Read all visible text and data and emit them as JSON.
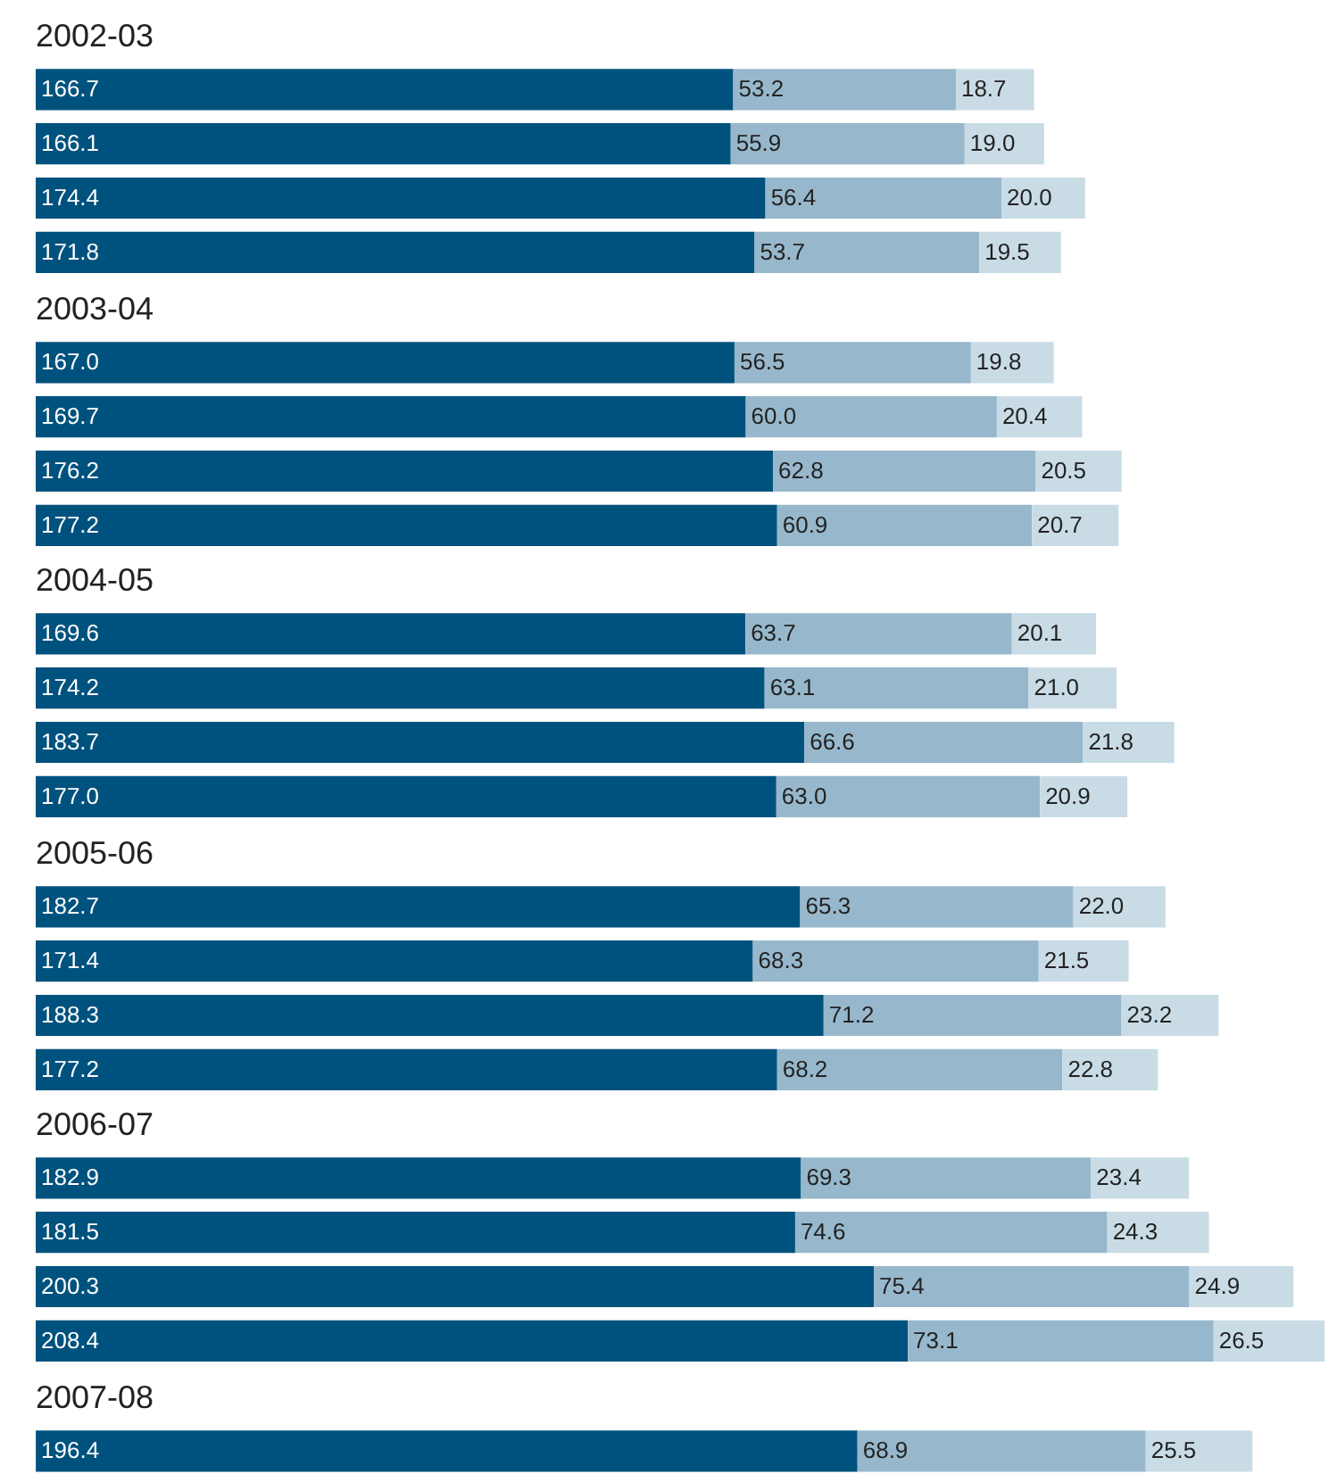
{
  "chart_data": [
    {
      "type": "bar",
      "title": "2002-03",
      "orientation": "horizontal",
      "stacked": true,
      "tick_labels": false,
      "categories": [
        null,
        null,
        null,
        null
      ],
      "series": [
        {
          "color": "#00527e",
          "values": [
            166.7,
            166.1,
            174.4,
            171.8
          ],
          "value_labels": [
            "166.7",
            "166.1",
            "174.4",
            "171.8"
          ]
        },
        {
          "color": "#97b8cc",
          "values": [
            53.2,
            55.9,
            56.4,
            53.7
          ],
          "value_labels": [
            "53.2",
            "55.9",
            "56.4",
            "53.7"
          ]
        },
        {
          "color": "#c9dce6",
          "values": [
            18.7,
            19.0,
            20.0,
            19.5
          ],
          "value_labels": [
            "18.7",
            "19.0",
            "20.0",
            "19.5"
          ]
        }
      ]
    },
    {
      "type": "bar",
      "title": "2003-04",
      "orientation": "horizontal",
      "stacked": true,
      "tick_labels": false,
      "categories": [
        null,
        null,
        null,
        null
      ],
      "series": [
        {
          "color": "#00527e",
          "values": [
            167.0,
            169.7,
            176.2,
            177.2
          ],
          "value_labels": [
            "167.0",
            "169.7",
            "176.2",
            "177.2"
          ]
        },
        {
          "color": "#97b8cc",
          "values": [
            56.5,
            60.0,
            62.8,
            60.9
          ],
          "value_labels": [
            "56.5",
            "60.0",
            "62.8",
            "60.9"
          ]
        },
        {
          "color": "#c9dce6",
          "values": [
            19.8,
            20.4,
            20.5,
            20.7
          ],
          "value_labels": [
            "19.8",
            "20.4",
            "20.5",
            "20.7"
          ]
        }
      ]
    },
    {
      "type": "bar",
      "title": "2004-05",
      "orientation": "horizontal",
      "stacked": true,
      "tick_labels": false,
      "categories": [
        null,
        null,
        null,
        null
      ],
      "series": [
        {
          "color": "#00527e",
          "values": [
            169.6,
            174.2,
            183.7,
            177.0
          ],
          "value_labels": [
            "169.6",
            "174.2",
            "183.7",
            "177.0"
          ]
        },
        {
          "color": "#97b8cc",
          "values": [
            63.7,
            63.1,
            66.6,
            63.0
          ],
          "value_labels": [
            "63.7",
            "63.1",
            "66.6",
            "63.0"
          ]
        },
        {
          "color": "#c9dce6",
          "values": [
            20.1,
            21.0,
            21.8,
            20.9
          ],
          "value_labels": [
            "20.1",
            "21.0",
            "21.8",
            "20.9"
          ]
        }
      ]
    },
    {
      "type": "bar",
      "title": "2005-06",
      "orientation": "horizontal",
      "stacked": true,
      "tick_labels": false,
      "categories": [
        null,
        null,
        null,
        null
      ],
      "series": [
        {
          "color": "#00527e",
          "values": [
            182.7,
            171.4,
            188.3,
            177.2
          ],
          "value_labels": [
            "182.7",
            "171.4",
            "188.3",
            "177.2"
          ]
        },
        {
          "color": "#97b8cc",
          "values": [
            65.3,
            68.3,
            71.2,
            68.2
          ],
          "value_labels": [
            "65.3",
            "68.3",
            "71.2",
            "68.2"
          ]
        },
        {
          "color": "#c9dce6",
          "values": [
            22.0,
            21.5,
            23.2,
            22.8
          ],
          "value_labels": [
            "22.0",
            "21.5",
            "23.2",
            "22.8"
          ]
        }
      ]
    },
    {
      "type": "bar",
      "title": "2006-07",
      "orientation": "horizontal",
      "stacked": true,
      "tick_labels": false,
      "categories": [
        null,
        null,
        null,
        null
      ],
      "series": [
        {
          "color": "#00527e",
          "values": [
            182.9,
            181.5,
            200.3,
            208.4
          ],
          "value_labels": [
            "182.9",
            "181.5",
            "200.3",
            "208.4"
          ]
        },
        {
          "color": "#97b8cc",
          "values": [
            69.3,
            74.6,
            75.4,
            73.1
          ],
          "value_labels": [
            "69.3",
            "74.6",
            "75.4",
            "73.1"
          ]
        },
        {
          "color": "#c9dce6",
          "values": [
            23.4,
            24.3,
            24.9,
            26.5
          ],
          "value_labels": [
            "23.4",
            "24.3",
            "24.9",
            "26.5"
          ]
        }
      ]
    },
    {
      "type": "bar",
      "title": "2007-08",
      "orientation": "horizontal",
      "stacked": true,
      "tick_labels": false,
      "categories": [
        null
      ],
      "series": [
        {
          "color": "#00527e",
          "values": [
            196.4
          ],
          "value_labels": [
            "196.4"
          ]
        },
        {
          "color": "#97b8cc",
          "values": [
            68.9
          ],
          "value_labels": [
            "68.9"
          ]
        },
        {
          "color": "#c9dce6",
          "values": [
            25.5
          ],
          "value_labels": [
            "25.5"
          ]
        }
      ]
    }
  ]
}
